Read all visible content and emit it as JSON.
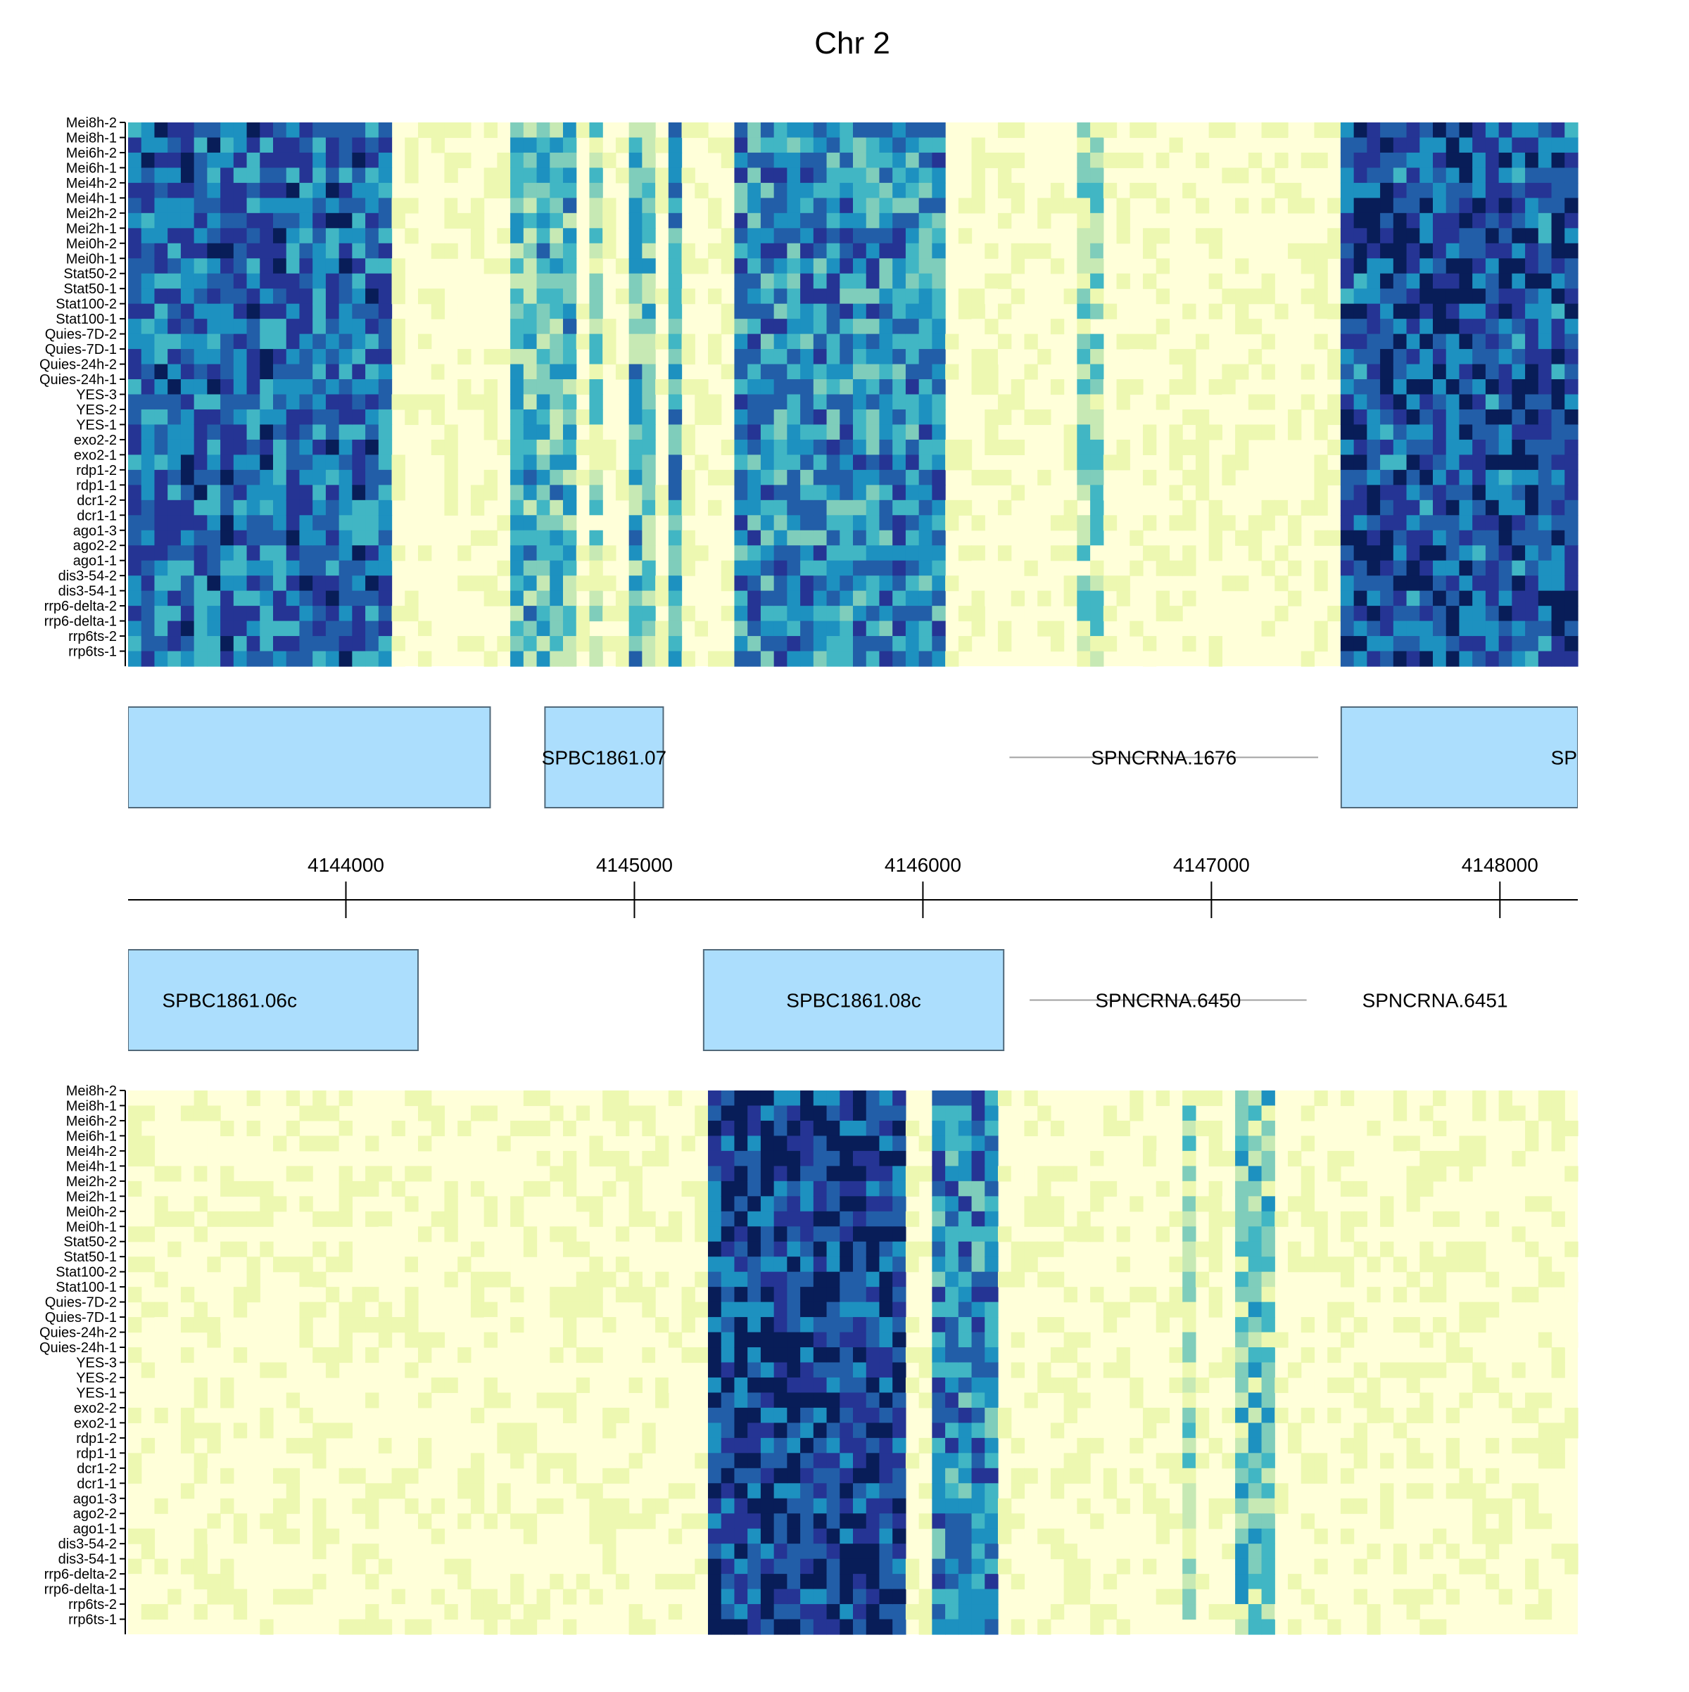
{
  "chart_data": {
    "type": "heatmap",
    "title": "Chr 2",
    "xlabel": "",
    "ylabel": "",
    "xlim": [
      4143245,
      4148270
    ],
    "grid": false,
    "legend": "none",
    "x_ticks": [
      4144000,
      4145000,
      4146000,
      4147000,
      4148000
    ],
    "x_tick_labels": [
      "4144000",
      "4145000",
      "4146000",
      "4147000",
      "4148000"
    ],
    "samples": [
      "Mei8h-2",
      "Mei8h-1",
      "Mei6h-2",
      "Mei6h-1",
      "Mei4h-2",
      "Mei4h-1",
      "Mei2h-2",
      "Mei2h-1",
      "Mei0h-2",
      "Mei0h-1",
      "Stat50-2",
      "Stat50-1",
      "Stat100-2",
      "Stat100-1",
      "Quies-7D-2",
      "Quies-7D-1",
      "Quies-24h-2",
      "Quies-24h-1",
      "YES-3",
      "YES-2",
      "YES-1",
      "exo2-2",
      "exo2-1",
      "rdp1-2",
      "rdp1-1",
      "dcr1-2",
      "dcr1-1",
      "ago1-3",
      "ago2-2",
      "ago1-1",
      "dis3-54-2",
      "dis3-54-1",
      "rrp6-delta-2",
      "rrp6-delta-1",
      "rrp6ts-2",
      "rrp6ts-1"
    ],
    "color_scale": [
      "#ffffd9",
      "#edf8b1",
      "#c7e9b4",
      "#7fcdbb",
      "#41b6c4",
      "#1d91c0",
      "#225ea8",
      "#253494",
      "#081d58"
    ],
    "top_strand": {
      "genes": [
        {
          "name": "",
          "start": 4143245,
          "end": 4144500,
          "type": "gene"
        },
        {
          "name": "SPBC1861.07",
          "start": 4144690,
          "end": 4145100,
          "type": "gene"
        },
        {
          "name": "SPNCRNA.1676",
          "start": 4146300,
          "end": 4147370,
          "type": "ncrna"
        },
        {
          "name": "SP",
          "start": 4147450,
          "end": 4148270,
          "type": "gene"
        }
      ],
      "signal_bands": [
        {
          "start": 4143245,
          "end": 4144180,
          "level": 0.72
        },
        {
          "start": 4144580,
          "end": 4144780,
          "level": 0.45
        },
        {
          "start": 4144850,
          "end": 4144900,
          "level": 0.3
        },
        {
          "start": 4145000,
          "end": 4145060,
          "level": 0.45
        },
        {
          "start": 4145100,
          "end": 4145180,
          "level": 0.55
        },
        {
          "start": 4145350,
          "end": 4146070,
          "level": 0.62
        },
        {
          "start": 4146540,
          "end": 4146620,
          "level": 0.3
        },
        {
          "start": 4147450,
          "end": 4148270,
          "level": 0.8
        }
      ]
    },
    "bottom_strand": {
      "genes": [
        {
          "name": "SPBC1861.06c",
          "start": 4143245,
          "end": 4144250,
          "type": "gene"
        },
        {
          "name": "SPBC1861.08c",
          "start": 4145240,
          "end": 4146280,
          "type": "gene"
        },
        {
          "name": "SPNCRNA.6450",
          "start": 4146370,
          "end": 4147330,
          "type": "ncrna"
        },
        {
          "name": "SPNCRNA.6451",
          "start": 4147500,
          "end": 4148050,
          "type": "ncrna_label"
        }
      ],
      "signal_bands": [
        {
          "start": 4145240,
          "end": 4145940,
          "level": 0.85
        },
        {
          "start": 4146020,
          "end": 4146260,
          "level": 0.65
        },
        {
          "start": 4146880,
          "end": 4146950,
          "level": 0.3
        },
        {
          "start": 4147070,
          "end": 4147200,
          "level": 0.4
        }
      ]
    }
  }
}
